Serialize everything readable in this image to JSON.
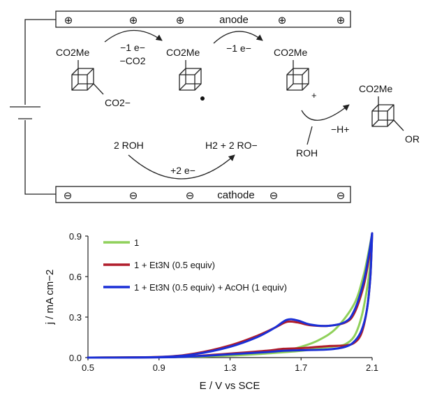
{
  "scheme": {
    "anode_label": "anode",
    "cathode_label": "cathode",
    "plus_sign": "⊕",
    "minus_sign": "⊖",
    "substrate": {
      "top": "CO2Me",
      "bottom": "CO2−"
    },
    "step1": {
      "line1": "−1 e−",
      "line2": "−CO2"
    },
    "radical": {
      "top": "CO2Me"
    },
    "step2": {
      "line1": "−1 e−"
    },
    "cation": {
      "top": "CO2Me",
      "charge": "+"
    },
    "step3": {
      "reagent": "ROH",
      "loss": "−H+"
    },
    "product": {
      "top": "CO2Me",
      "bottom": "OR"
    },
    "cathode_reaction": {
      "left": "2 ROH",
      "right": "H2 + 2 RO−",
      "electrons": "+2 e−"
    }
  },
  "chart_data": {
    "type": "line",
    "xlabel": "E / V vs SCE",
    "ylabel": "j / mA cm−2",
    "xlim": [
      0.5,
      2.1
    ],
    "ylim": [
      0.0,
      0.9
    ],
    "xticks": [
      "0.5",
      "0.9",
      "1.3",
      "1.7",
      "2.1"
    ],
    "yticks": [
      "0.0",
      "0.3",
      "0.6",
      "0.9"
    ],
    "grid": false,
    "legend_position": "top-left",
    "series": [
      {
        "name": "1",
        "color": "#8fd05a",
        "forward": [
          [
            0.5,
            0.0
          ],
          [
            0.9,
            0.003
          ],
          [
            1.1,
            0.008
          ],
          [
            1.3,
            0.018
          ],
          [
            1.5,
            0.035
          ],
          [
            1.6,
            0.05
          ],
          [
            1.7,
            0.08
          ],
          [
            1.8,
            0.13
          ],
          [
            1.9,
            0.22
          ],
          [
            2.0,
            0.4
          ],
          [
            2.05,
            0.6
          ],
          [
            2.08,
            0.78
          ],
          [
            2.1,
            0.92
          ]
        ],
        "reverse": [
          [
            2.1,
            0.92
          ],
          [
            2.09,
            0.7
          ],
          [
            2.07,
            0.5
          ],
          [
            2.04,
            0.3
          ],
          [
            2.0,
            0.16
          ],
          [
            1.95,
            0.1
          ],
          [
            1.9,
            0.085
          ],
          [
            1.8,
            0.07
          ],
          [
            1.7,
            0.05
          ],
          [
            1.5,
            0.03
          ],
          [
            1.3,
            0.015
          ],
          [
            1.0,
            0.004
          ],
          [
            0.5,
            0.0
          ]
        ]
      },
      {
        "name": "1 + Et3N (0.5 equiv)",
        "color": "#b01c2a",
        "forward": [
          [
            0.5,
            0.0
          ],
          [
            0.9,
            0.005
          ],
          [
            1.1,
            0.03
          ],
          [
            1.3,
            0.09
          ],
          [
            1.45,
            0.16
          ],
          [
            1.55,
            0.22
          ],
          [
            1.62,
            0.265
          ],
          [
            1.68,
            0.26
          ],
          [
            1.75,
            0.24
          ],
          [
            1.85,
            0.235
          ],
          [
            1.95,
            0.26
          ],
          [
            2.0,
            0.33
          ],
          [
            2.05,
            0.52
          ],
          [
            2.08,
            0.72
          ],
          [
            2.1,
            0.92
          ]
        ],
        "reverse": [
          [
            2.1,
            0.92
          ],
          [
            2.09,
            0.6
          ],
          [
            2.07,
            0.35
          ],
          [
            2.04,
            0.18
          ],
          [
            2.0,
            0.11
          ],
          [
            1.95,
            0.09
          ],
          [
            1.85,
            0.085
          ],
          [
            1.7,
            0.07
          ],
          [
            1.6,
            0.065
          ],
          [
            1.5,
            0.05
          ],
          [
            1.3,
            0.03
          ],
          [
            1.0,
            0.005
          ],
          [
            0.5,
            0.0
          ]
        ]
      },
      {
        "name": "1 + Et3N (0.5 equiv) + AcOH (1 equiv)",
        "color": "#1a2fd6",
        "forward": [
          [
            0.5,
            0.0
          ],
          [
            0.9,
            0.004
          ],
          [
            1.1,
            0.025
          ],
          [
            1.3,
            0.08
          ],
          [
            1.45,
            0.15
          ],
          [
            1.55,
            0.22
          ],
          [
            1.62,
            0.28
          ],
          [
            1.68,
            0.275
          ],
          [
            1.75,
            0.245
          ],
          [
            1.85,
            0.235
          ],
          [
            1.95,
            0.265
          ],
          [
            2.0,
            0.35
          ],
          [
            2.05,
            0.55
          ],
          [
            2.08,
            0.75
          ],
          [
            2.1,
            0.92
          ]
        ],
        "reverse": [
          [
            2.1,
            0.92
          ],
          [
            2.09,
            0.6
          ],
          [
            2.07,
            0.35
          ],
          [
            2.04,
            0.2
          ],
          [
            2.0,
            0.12
          ],
          [
            1.95,
            0.08
          ],
          [
            1.85,
            0.06
          ],
          [
            1.7,
            0.055
          ],
          [
            1.6,
            0.05
          ],
          [
            1.5,
            0.04
          ],
          [
            1.3,
            0.025
          ],
          [
            1.0,
            0.004
          ],
          [
            0.5,
            0.0
          ]
        ]
      }
    ]
  }
}
